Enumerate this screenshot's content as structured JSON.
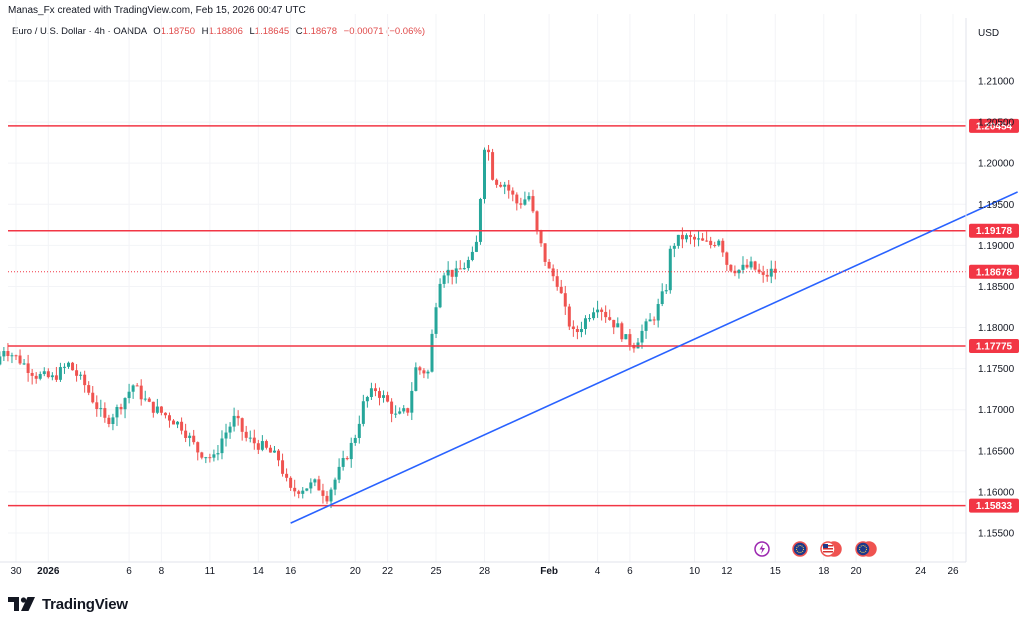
{
  "header": {
    "created_by": "Manas_Fx created with TradingView.com, Feb 15, 2026 00:47 UTC"
  },
  "legend": {
    "symbol": "Euro / U.S. Dollar · 4h · OANDA",
    "o_label": "O",
    "o_value": "1.18750",
    "h_label": "H",
    "h_value": "1.18806",
    "l_label": "L",
    "l_value": "1.18645",
    "c_label": "C",
    "c_value": "1.18678",
    "change": "−0.00071 (−0.06%)"
  },
  "currency_label": "USD",
  "brand": {
    "name": "TradingView"
  },
  "colors": {
    "up": "#26a69a",
    "down": "#ef5350",
    "level": "#f23645",
    "trend": "#2962ff",
    "last": "#f23645"
  },
  "chart_data": {
    "type": "candlestick",
    "timeframe": "4h",
    "y_ticks": [
      1.21,
      1.205,
      1.2,
      1.195,
      1.19,
      1.185,
      1.18,
      1.175,
      1.17,
      1.165,
      1.16,
      1.155
    ],
    "y_tick_labels": [
      "1.21000",
      "1.20500",
      "1.20000",
      "1.19500",
      "1.19000",
      "1.18500",
      "1.18000",
      "1.17500",
      "1.17000",
      "1.16500",
      "1.16000",
      "1.15500"
    ],
    "ylim": [
      1.1522,
      1.2145
    ],
    "x_ticks": [
      {
        "label": "30",
        "day": -2
      },
      {
        "label": "2026",
        "day": 0
      },
      {
        "label": "6",
        "day": 5
      },
      {
        "label": "8",
        "day": 7
      },
      {
        "label": "11",
        "day": 10
      },
      {
        "label": "14",
        "day": 13
      },
      {
        "label": "16",
        "day": 15
      },
      {
        "label": "20",
        "day": 19
      },
      {
        "label": "22",
        "day": 21
      },
      {
        "label": "25",
        "day": 24
      },
      {
        "label": "28",
        "day": 27
      },
      {
        "label": "Feb",
        "day": 31
      },
      {
        "label": "4",
        "day": 34
      },
      {
        "label": "6",
        "day": 36
      },
      {
        "label": "10",
        "day": 40
      },
      {
        "label": "12",
        "day": 42
      },
      {
        "label": "15",
        "day": 45
      },
      {
        "label": "18",
        "day": 48
      },
      {
        "label": "20",
        "day": 50
      },
      {
        "label": "24",
        "day": 54
      },
      {
        "label": "26",
        "day": 56
      }
    ],
    "horizontal_levels": [
      {
        "value": 1.20454,
        "label": "1.20454"
      },
      {
        "value": 1.19178,
        "label": "1.19178"
      },
      {
        "value": 1.17775,
        "label": "1.17775"
      },
      {
        "value": 1.15833,
        "label": "1.15833"
      }
    ],
    "last_price": {
      "value": 1.18678,
      "label": "1.18678"
    },
    "trendline": {
      "start": {
        "day": 15,
        "price": 1.1562
      },
      "end": {
        "day": 60,
        "price": 1.1965
      }
    },
    "anchors": [
      {
        "day": -3.0,
        "price": 1.1755
      },
      {
        "day": -2.5,
        "price": 1.1775
      },
      {
        "day": -1.5,
        "price": 1.176
      },
      {
        "day": -0.5,
        "price": 1.1742
      },
      {
        "day": 0.5,
        "price": 1.1738
      },
      {
        "day": 1.5,
        "price": 1.1755
      },
      {
        "day": 2.5,
        "price": 1.173
      },
      {
        "day": 3.8,
        "price": 1.1685
      },
      {
        "day": 4.5,
        "price": 1.17
      },
      {
        "day": 5.5,
        "price": 1.173
      },
      {
        "day": 6.5,
        "price": 1.1705
      },
      {
        "day": 7.8,
        "price": 1.169
      },
      {
        "day": 8.5,
        "price": 1.168
      },
      {
        "day": 9.5,
        "price": 1.165
      },
      {
        "day": 10.5,
        "price": 1.164
      },
      {
        "day": 11.0,
        "price": 1.1665
      },
      {
        "day": 11.8,
        "price": 1.169
      },
      {
        "day": 12.5,
        "price": 1.1665
      },
      {
        "day": 13.5,
        "price": 1.1655
      },
      {
        "day": 14.5,
        "price": 1.164
      },
      {
        "day": 15.2,
        "price": 1.16
      },
      {
        "day": 16.0,
        "price": 1.1605
      },
      {
        "day": 16.8,
        "price": 1.161
      },
      {
        "day": 17.5,
        "price": 1.1595
      },
      {
        "day": 18.5,
        "price": 1.1635
      },
      {
        "day": 19.2,
        "price": 1.1665
      },
      {
        "day": 19.8,
        "price": 1.171
      },
      {
        "day": 20.5,
        "price": 1.1725
      },
      {
        "day": 21.2,
        "price": 1.171
      },
      {
        "day": 21.8,
        "price": 1.169
      },
      {
        "day": 22.5,
        "price": 1.17
      },
      {
        "day": 23.0,
        "price": 1.175
      },
      {
        "day": 23.8,
        "price": 1.1745
      },
      {
        "day": 24.0,
        "price": 1.179
      },
      {
        "day": 24.3,
        "price": 1.184
      },
      {
        "day": 24.6,
        "price": 1.187
      },
      {
        "day": 25.5,
        "price": 1.1865
      },
      {
        "day": 26.0,
        "price": 1.1875
      },
      {
        "day": 26.7,
        "price": 1.189
      },
      {
        "day": 27.0,
        "price": 1.196
      },
      {
        "day": 27.3,
        "price": 1.2035
      },
      {
        "day": 27.8,
        "price": 1.198
      },
      {
        "day": 28.5,
        "price": 1.1975
      },
      {
        "day": 29.3,
        "price": 1.195
      },
      {
        "day": 30.0,
        "price": 1.196
      },
      {
        "day": 30.5,
        "price": 1.1915
      },
      {
        "day": 31.2,
        "price": 1.187
      },
      {
        "day": 31.8,
        "price": 1.1855
      },
      {
        "day": 32.3,
        "price": 1.1815
      },
      {
        "day": 32.8,
        "price": 1.179
      },
      {
        "day": 33.5,
        "price": 1.181
      },
      {
        "day": 34.2,
        "price": 1.183
      },
      {
        "day": 34.8,
        "price": 1.1815
      },
      {
        "day": 35.5,
        "price": 1.18
      },
      {
        "day": 36.0,
        "price": 1.1785
      },
      {
        "day": 36.5,
        "price": 1.178
      },
      {
        "day": 37.0,
        "price": 1.1795
      },
      {
        "day": 37.8,
        "price": 1.1815
      },
      {
        "day": 38.5,
        "price": 1.185
      },
      {
        "day": 38.8,
        "price": 1.19
      },
      {
        "day": 39.5,
        "price": 1.191
      },
      {
        "day": 40.5,
        "price": 1.1905
      },
      {
        "day": 41.2,
        "price": 1.19
      },
      {
        "day": 41.8,
        "price": 1.191
      },
      {
        "day": 42.3,
        "price": 1.1875
      },
      {
        "day": 43.0,
        "price": 1.187
      },
      {
        "day": 43.8,
        "price": 1.1875
      },
      {
        "day": 44.5,
        "price": 1.186
      },
      {
        "day": 45.0,
        "price": 1.1868
      }
    ],
    "candles_per_day": 4
  }
}
